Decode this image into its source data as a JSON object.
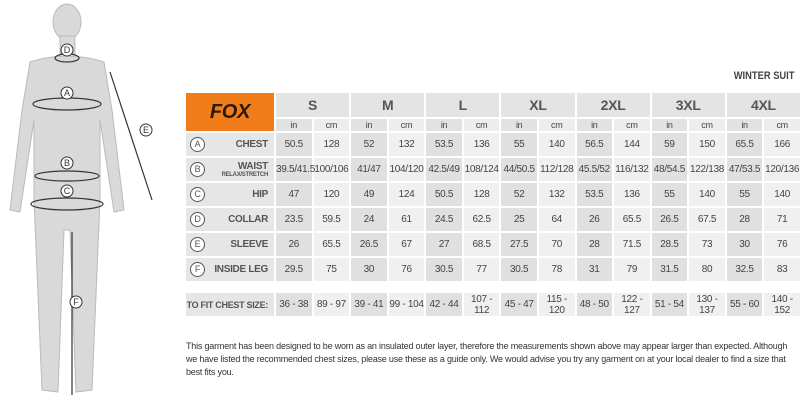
{
  "title": "WINTER SUIT",
  "brand": "FOX",
  "sizes": [
    "S",
    "M",
    "L",
    "XL",
    "2XL",
    "3XL",
    "4XL"
  ],
  "units": [
    "in",
    "cm"
  ],
  "rows": [
    {
      "marker": "A",
      "label": "CHEST",
      "sub": "",
      "values": [
        "50.5",
        "128",
        "52",
        "132",
        "53.5",
        "136",
        "55",
        "140",
        "56.5",
        "144",
        "59",
        "150",
        "65.5",
        "166"
      ]
    },
    {
      "marker": "B",
      "label": "WAIST",
      "sub": "RELAX/STRETCH",
      "values": [
        "39.5/41.5",
        "100/106",
        "41/47",
        "104/120",
        "42.5/49",
        "108/124",
        "44/50.5",
        "112/128",
        "45.5/52",
        "116/132",
        "48/54.5",
        "122/138",
        "47/53.5",
        "120/136"
      ]
    },
    {
      "marker": "C",
      "label": "HIP",
      "sub": "",
      "values": [
        "47",
        "120",
        "49",
        "124",
        "50.5",
        "128",
        "52",
        "132",
        "53.5",
        "136",
        "55",
        "140",
        "55",
        "140"
      ]
    },
    {
      "marker": "D",
      "label": "COLLAR",
      "sub": "",
      "values": [
        "23.5",
        "59.5",
        "24",
        "61",
        "24.5",
        "62.5",
        "25",
        "64",
        "26",
        "65.5",
        "26.5",
        "67.5",
        "28",
        "71"
      ]
    },
    {
      "marker": "E",
      "label": "SLEEVE",
      "sub": "",
      "values": [
        "26",
        "65.5",
        "26.5",
        "67",
        "27",
        "68.5",
        "27.5",
        "70",
        "28",
        "71.5",
        "28.5",
        "73",
        "30",
        "76"
      ]
    },
    {
      "marker": "F",
      "label": "INSIDE LEG",
      "sub": "",
      "values": [
        "29.5",
        "75",
        "30",
        "76",
        "30.5",
        "77",
        "30.5",
        "78",
        "31",
        "79",
        "31.5",
        "80",
        "32.5",
        "83"
      ]
    }
  ],
  "chest_fit": {
    "label": "TO FIT CHEST SIZE:",
    "values": [
      "36 - 38",
      "89 - 97",
      "39 - 41",
      "99 - 104",
      "42 - 44",
      "107 - 112",
      "45 - 47",
      "115 - 120",
      "48 - 50",
      "122 - 127",
      "51 - 54",
      "130 - 137",
      "55 - 60",
      "140 - 152"
    ]
  },
  "figure_markers": [
    "D",
    "A",
    "B",
    "C",
    "E",
    "F"
  ],
  "note": "This garment has been designed to be worn as an insulated outer layer, therefore the measurements shown above may appear larger than expected. Although we have listed the recommended chest sizes, please use these as a guide only. We would advise you try any garment on at your local dealer to find a size that best fits you.",
  "colors": {
    "brand": "#f07d19"
  }
}
